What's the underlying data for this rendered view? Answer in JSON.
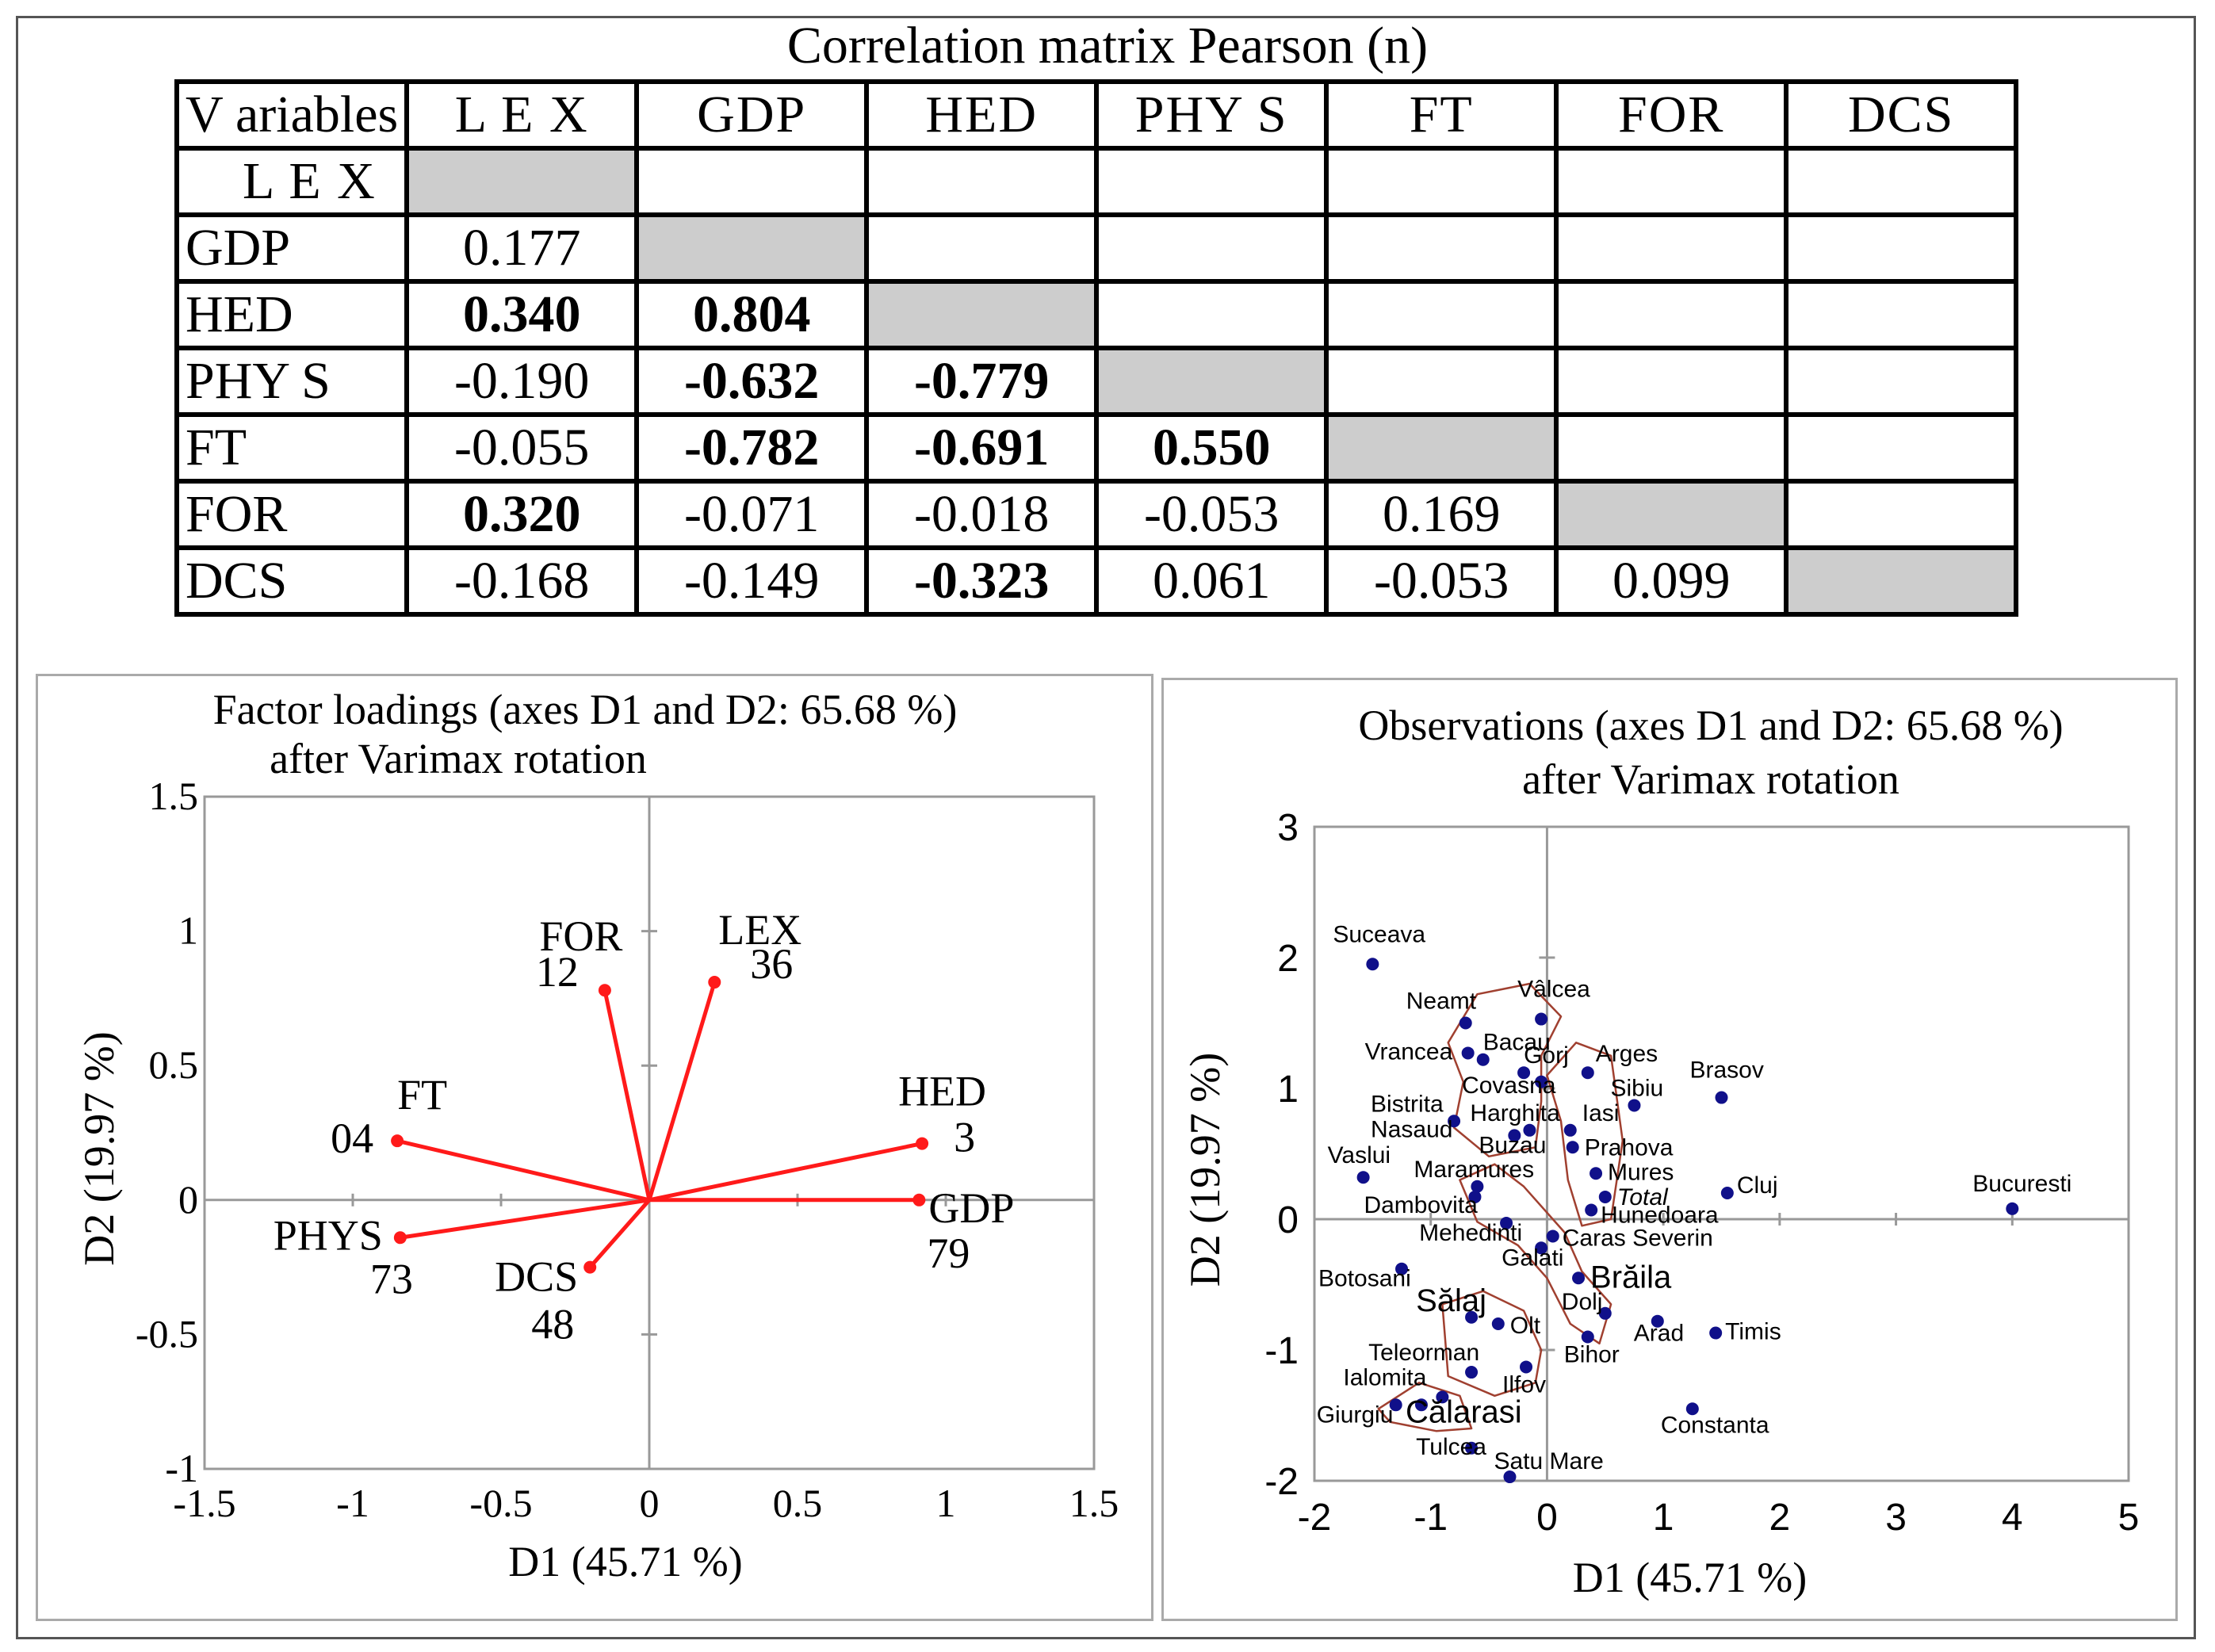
{
  "matrix": {
    "title": "Correlation matrix Pearson (n)",
    "corner": "V ariables",
    "columns": [
      "L E X",
      "GDP",
      "HED",
      "PHY S",
      "FT",
      "FOR",
      "DCS"
    ],
    "rows": [
      {
        "label": "L E X",
        "cells": [
          "",
          "",
          "",
          "",
          "",
          "",
          ""
        ]
      },
      {
        "label": "GDP",
        "cells": [
          "0.177",
          "",
          "",
          "",
          "",
          "",
          ""
        ]
      },
      {
        "label": "HED",
        "cells": [
          "0.340",
          "0.804",
          "",
          "",
          "",
          "",
          ""
        ]
      },
      {
        "label": "PHY S",
        "cells": [
          "-0.190",
          "-0.632",
          "-0.779",
          "",
          "",
          "",
          ""
        ]
      },
      {
        "label": "FT",
        "cells": [
          "-0.055",
          "-0.782",
          "-0.691",
          "0.550",
          "",
          "",
          ""
        ]
      },
      {
        "label": "FOR",
        "cells": [
          "0.320",
          "-0.071",
          "-0.018",
          "-0.053",
          "0.169",
          "",
          ""
        ]
      },
      {
        "label": "DCS",
        "cells": [
          "-0.168",
          "-0.149",
          "-0.323",
          "0.061",
          "-0.053",
          "0.099",
          ""
        ]
      }
    ],
    "bold_cells": [
      [
        2,
        0
      ],
      [
        2,
        1
      ],
      [
        3,
        1
      ],
      [
        3,
        2
      ],
      [
        4,
        1
      ],
      [
        4,
        2
      ],
      [
        4,
        3
      ],
      [
        5,
        0
      ],
      [
        6,
        2
      ]
    ],
    "diagonal_color": "#cdcdcd"
  },
  "chart_data": [
    {
      "type": "scatter",
      "subtype": "biplot-vectors",
      "title": "Factor loadings (axes D1 and D2: 65.68 %)",
      "subtitle": "after Varimax rotation",
      "xlabel": "D1 (45.71 %)",
      "ylabel": "D2 (19.97 %)",
      "xlim": [
        -1.5,
        1.5
      ],
      "ylim": [
        -1,
        1.5
      ],
      "xticks": [
        -1.5,
        -1,
        -0.5,
        0,
        0.5,
        1,
        1.5
      ],
      "xtick_labels": [
        "-1.5",
        "-1",
        "-0.5",
        "0",
        "0.5",
        "1",
        "1.5"
      ],
      "yticks": [
        -1,
        -0.5,
        0,
        0.5,
        1,
        1.5
      ],
      "ytick_labels": [
        "-1",
        "-0.5",
        "0",
        "0.5",
        "1",
        "1.5"
      ],
      "vector_color": "#ff1a1a",
      "vectors": [
        {
          "name": "LEX",
          "code": "36",
          "x": 0.22,
          "y": 0.81
        },
        {
          "name": "FOR",
          "code": "12",
          "x": -0.15,
          "y": 0.78
        },
        {
          "name": "HED",
          "code": "3",
          "x": 0.92,
          "y": 0.21
        },
        {
          "name": "GDP",
          "code": "79",
          "x": 0.91,
          "y": 0.0
        },
        {
          "name": "FT",
          "code": "04",
          "x": -0.85,
          "y": 0.22
        },
        {
          "name": "PHYS",
          "code": "73",
          "x": -0.84,
          "y": -0.14
        },
        {
          "name": "DCS",
          "code": "48",
          "x": -0.2,
          "y": -0.25
        }
      ]
    },
    {
      "type": "scatter",
      "title": "Observations (axes D1 and D2: 65.68 %)",
      "subtitle": "after Varimax rotation",
      "xlabel": "D1 (45.71 %)",
      "ylabel": "D2 (19.97 %)",
      "xlim": [
        -2,
        5
      ],
      "ylim": [
        -2,
        3
      ],
      "xticks": [
        -2,
        -1,
        0,
        1,
        2,
        3,
        4,
        5
      ],
      "xtick_labels": [
        "-2",
        "-1",
        "0",
        "1",
        "2",
        "3",
        "4",
        "5"
      ],
      "yticks": [
        -2,
        -1,
        0,
        1,
        2,
        3
      ],
      "ytick_labels": [
        "-2",
        "-1",
        "0",
        "1",
        "2",
        "3"
      ],
      "point_color": "#10108a",
      "cluster_color": "#a04030",
      "points": [
        {
          "name": "Suceava",
          "x": -1.5,
          "y": 1.95
        },
        {
          "name": "Vâlcea",
          "x": -0.05,
          "y": 1.53
        },
        {
          "name": "Neamt",
          "x": -0.7,
          "y": 1.5
        },
        {
          "name": "Bacau",
          "x": -0.55,
          "y": 1.22
        },
        {
          "name": "Vrancea",
          "x": -0.68,
          "y": 1.27
        },
        {
          "name": "Gorj",
          "x": -0.2,
          "y": 1.12
        },
        {
          "name": "Arges",
          "x": 0.35,
          "y": 1.12
        },
        {
          "name": "Covasna",
          "x": -0.05,
          "y": 1.05
        },
        {
          "name": "Sibiu",
          "x": 0.75,
          "y": 0.87
        },
        {
          "name": "Brasov",
          "x": 1.5,
          "y": 0.93
        },
        {
          "name": "Bistrita Nasaud",
          "x": -0.8,
          "y": 0.75
        },
        {
          "name": "Harghita",
          "x": -0.15,
          "y": 0.68
        },
        {
          "name": "Iasi",
          "x": 0.2,
          "y": 0.68
        },
        {
          "name": "Buzau",
          "x": -0.28,
          "y": 0.64
        },
        {
          "name": "Prahova",
          "x": 0.22,
          "y": 0.55
        },
        {
          "name": "Vaslui",
          "x": -1.58,
          "y": 0.32
        },
        {
          "name": "Maramures",
          "x": -0.6,
          "y": 0.25
        },
        {
          "name": "Mures",
          "x": 0.42,
          "y": 0.35
        },
        {
          "name": "Cluj",
          "x": 1.55,
          "y": 0.2
        },
        {
          "name": "Bucuresti",
          "x": 4.0,
          "y": 0.08
        },
        {
          "name": "Total",
          "x": 0.5,
          "y": 0.17
        },
        {
          "name": "Dambovita",
          "x": -0.62,
          "y": 0.17
        },
        {
          "name": "Hunedoara",
          "x": 0.38,
          "y": 0.07
        },
        {
          "name": "Mehedinti",
          "x": -0.35,
          "y": -0.03
        },
        {
          "name": "Caras Severin",
          "x": 0.05,
          "y": -0.13
        },
        {
          "name": "Galati",
          "x": -0.05,
          "y": -0.22
        },
        {
          "name": "Botosani",
          "x": -1.25,
          "y": -0.38
        },
        {
          "name": "Brăila",
          "x": 0.27,
          "y": -0.45
        },
        {
          "name": "Sălaj",
          "x": -0.65,
          "y": -0.75
        },
        {
          "name": "Olt",
          "x": -0.42,
          "y": -0.8
        },
        {
          "name": "Dolj",
          "x": 0.5,
          "y": -0.72
        },
        {
          "name": "Arad",
          "x": 0.95,
          "y": -0.78
        },
        {
          "name": "Timis",
          "x": 1.45,
          "y": -0.87
        },
        {
          "name": "Bihor",
          "x": 0.35,
          "y": -0.9
        },
        {
          "name": "Teleorman",
          "x": -0.65,
          "y": -1.17
        },
        {
          "name": "Ilfov",
          "x": -0.18,
          "y": -1.13
        },
        {
          "name": "Ialomita",
          "x": -0.9,
          "y": -1.36
        },
        {
          "name": "Giurgiu",
          "x": -1.3,
          "y": -1.42
        },
        {
          "name": "Călarasi",
          "x": -1.08,
          "y": -1.42
        },
        {
          "name": "Constanta",
          "x": 1.25,
          "y": -1.45
        },
        {
          "name": "Tulcea",
          "x": -0.65,
          "y": -1.75
        },
        {
          "name": "Satu Mare",
          "x": -0.32,
          "y": -1.97
        }
      ]
    }
  ]
}
